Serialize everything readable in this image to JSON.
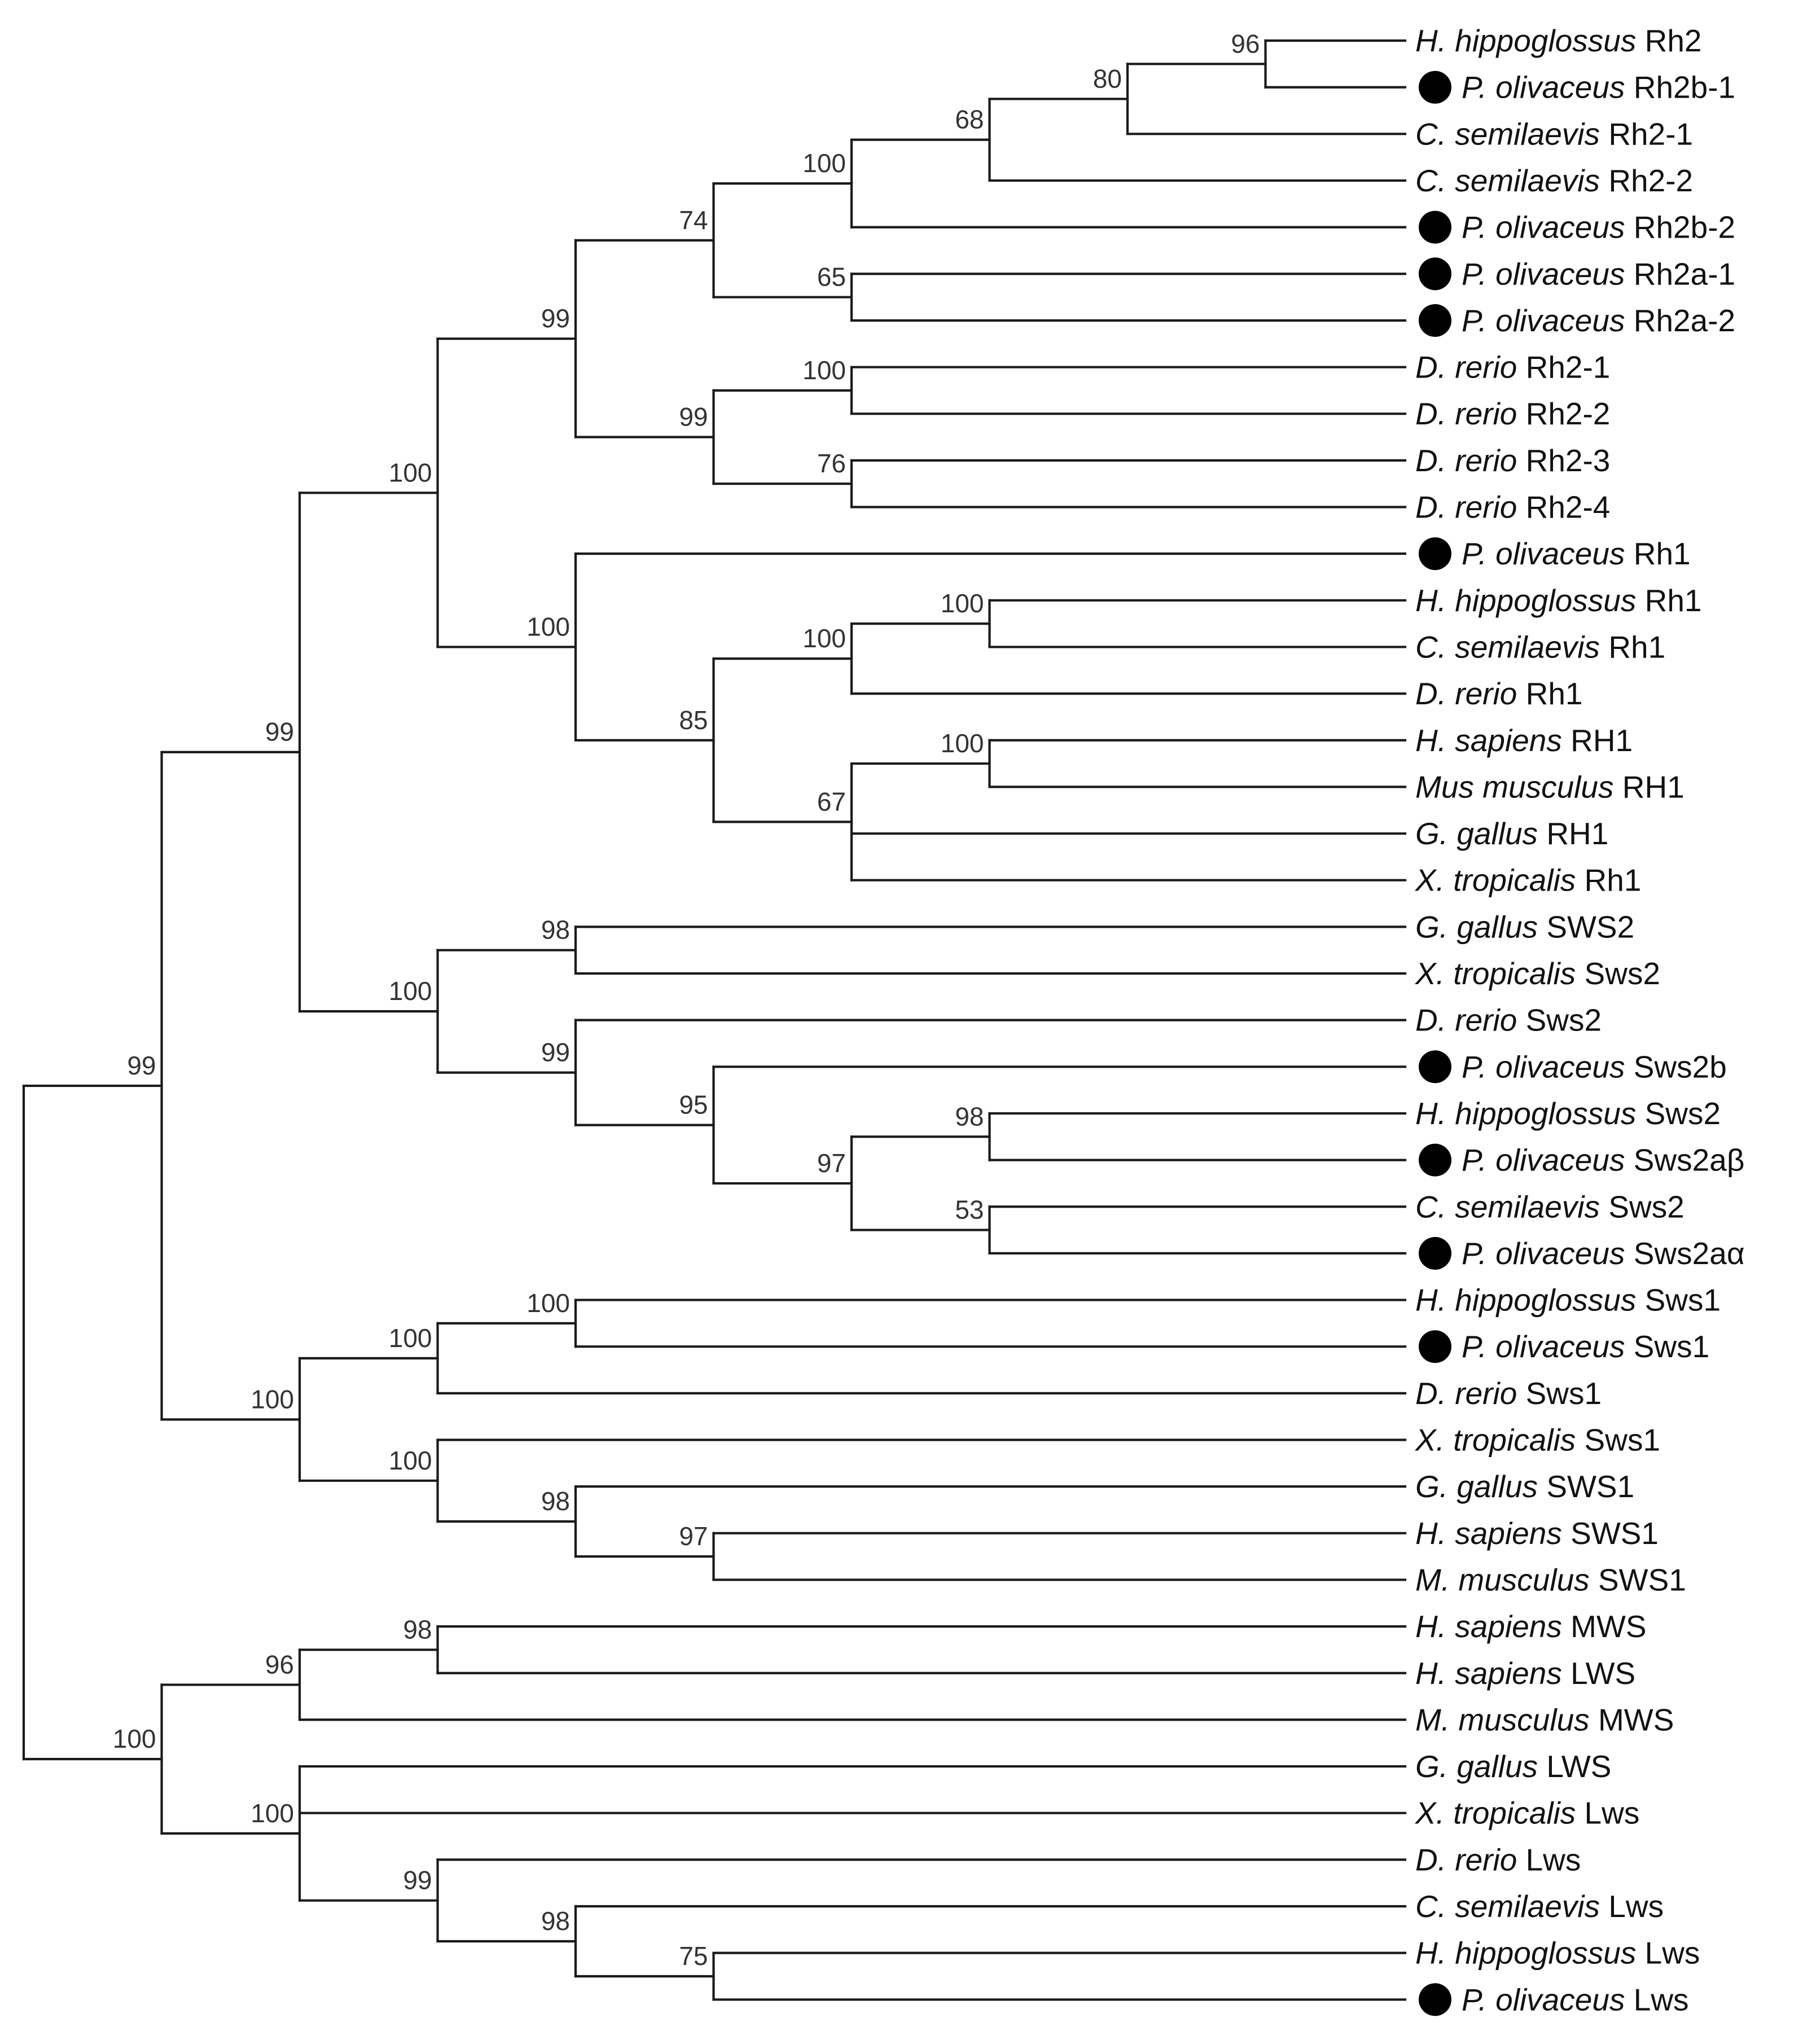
{
  "figure": {
    "type": "phylogenetic-tree",
    "marker_color": "#000000",
    "marker_meaning": "filled-circle marks P. olivaceus sequences"
  },
  "taxa": [
    {
      "species": "H. hippoglossus",
      "gene": "Rh2",
      "marker": false
    },
    {
      "species": "P. olivaceus",
      "gene": "Rh2b-1",
      "marker": true
    },
    {
      "species": "C. semilaevis",
      "gene": "Rh2-1",
      "marker": false
    },
    {
      "species": "C. semilaevis",
      "gene": "Rh2-2",
      "marker": false
    },
    {
      "species": "P. olivaceus",
      "gene": "Rh2b-2",
      "marker": true
    },
    {
      "species": "P. olivaceus",
      "gene": "Rh2a-1",
      "marker": true
    },
    {
      "species": "P. olivaceus",
      "gene": "Rh2a-2",
      "marker": true
    },
    {
      "species": "D. rerio",
      "gene": "Rh2-1",
      "marker": false
    },
    {
      "species": "D. rerio",
      "gene": "Rh2-2",
      "marker": false
    },
    {
      "species": "D. rerio",
      "gene": "Rh2-3",
      "marker": false
    },
    {
      "species": "D. rerio",
      "gene": "Rh2-4",
      "marker": false
    },
    {
      "species": "P. olivaceus",
      "gene": "Rh1",
      "marker": true
    },
    {
      "species": "H. hippoglossus",
      "gene": "Rh1",
      "marker": false
    },
    {
      "species": "C. semilaevis",
      "gene": "Rh1",
      "marker": false
    },
    {
      "species": "D. rerio",
      "gene": "Rh1",
      "marker": false
    },
    {
      "species": "H. sapiens",
      "gene": "RH1",
      "marker": false
    },
    {
      "species": "Mus musculus",
      "gene": "RH1",
      "marker": false
    },
    {
      "species": "G. gallus",
      "gene": "RH1",
      "marker": false
    },
    {
      "species": "X. tropicalis",
      "gene": "Rh1",
      "marker": false
    },
    {
      "species": "G. gallus",
      "gene": "SWS2",
      "marker": false
    },
    {
      "species": "X. tropicalis",
      "gene": "Sws2",
      "marker": false
    },
    {
      "species": "D. rerio",
      "gene": "Sws2",
      "marker": false
    },
    {
      "species": "P. olivaceus",
      "gene": "Sws2b",
      "marker": true
    },
    {
      "species": "H. hippoglossus",
      "gene": "Sws2",
      "marker": false
    },
    {
      "species": "P. olivaceus",
      "gene": "Sws2aβ",
      "marker": true
    },
    {
      "species": "C. semilaevis",
      "gene": "Sws2",
      "marker": false
    },
    {
      "species": "P. olivaceus",
      "gene": "Sws2aα",
      "marker": true
    },
    {
      "species": "H. hippoglossus",
      "gene": "Sws1",
      "marker": false
    },
    {
      "species": "P. olivaceus",
      "gene": "Sws1",
      "marker": true
    },
    {
      "species": "D. rerio",
      "gene": "Sws1",
      "marker": false
    },
    {
      "species": "X. tropicalis",
      "gene": "Sws1",
      "marker": false
    },
    {
      "species": "G. gallus",
      "gene": "SWS1",
      "marker": false
    },
    {
      "species": "H. sapiens",
      "gene": "SWS1",
      "marker": false
    },
    {
      "species": "M. musculus",
      "gene": "SWS1",
      "marker": false
    },
    {
      "species": "H. sapiens",
      "gene": "MWS",
      "marker": false
    },
    {
      "species": "H. sapiens",
      "gene": "LWS",
      "marker": false
    },
    {
      "species": "M. musculus",
      "gene": "MWS",
      "marker": false
    },
    {
      "species": "G. gallus",
      "gene": "LWS",
      "marker": false
    },
    {
      "species": "X. tropicalis",
      "gene": "Lws",
      "marker": false
    },
    {
      "species": "D. rerio",
      "gene": "Lws",
      "marker": false
    },
    {
      "species": "C. semilaevis",
      "gene": "Lws",
      "marker": false
    },
    {
      "species": "H. hippoglossus",
      "gene": "Lws",
      "marker": false
    },
    {
      "species": "P. olivaceus",
      "gene": "Lws",
      "marker": true
    }
  ],
  "tree": {
    "children": [
      {
        "support": "99",
        "children": [
          {
            "support": "99",
            "children": [
              {
                "support": "100",
                "children": [
                  {
                    "support": "99",
                    "children": [
                      {
                        "support": "74",
                        "children": [
                          {
                            "support": "100",
                            "children": [
                              {
                                "support": "68",
                                "children": [
                                  {
                                    "support": "80",
                                    "children": [
                                      {
                                        "support": "96",
                                        "children": [
                                          {
                                            "leaf": 0
                                          },
                                          {
                                            "leaf": 1
                                          }
                                        ]
                                      },
                                      {
                                        "leaf": 2
                                      }
                                    ]
                                  },
                                  {
                                    "leaf": 3
                                  }
                                ]
                              },
                              {
                                "leaf": 4
                              }
                            ]
                          },
                          {
                            "support": "65",
                            "children": [
                              {
                                "leaf": 5
                              },
                              {
                                "leaf": 6
                              }
                            ]
                          }
                        ]
                      },
                      {
                        "support": "99",
                        "children": [
                          {
                            "support": "100",
                            "children": [
                              {
                                "leaf": 7
                              },
                              {
                                "leaf": 8
                              }
                            ]
                          },
                          {
                            "support": "76",
                            "children": [
                              {
                                "leaf": 9
                              },
                              {
                                "leaf": 10
                              }
                            ]
                          }
                        ]
                      }
                    ]
                  },
                  {
                    "support": "100",
                    "children": [
                      {
                        "leaf": 11
                      },
                      {
                        "support": "85",
                        "children": [
                          {
                            "support": "100",
                            "children": [
                              {
                                "support": "100",
                                "children": [
                                  {
                                    "leaf": 12
                                  },
                                  {
                                    "leaf": 13
                                  }
                                ]
                              },
                              {
                                "leaf": 14
                              }
                            ]
                          },
                          {
                            "support": "67",
                            "children": [
                              {
                                "support": "100",
                                "children": [
                                  {
                                    "leaf": 15
                                  },
                                  {
                                    "leaf": 16
                                  }
                                ]
                              },
                              {
                                "leaf": 17
                              },
                              {
                                "leaf": 18
                              }
                            ]
                          }
                        ]
                      }
                    ]
                  }
                ]
              },
              {
                "support": "100",
                "children": [
                  {
                    "support": "98",
                    "children": [
                      {
                        "leaf": 19
                      },
                      {
                        "leaf": 20
                      }
                    ]
                  },
                  {
                    "support": "99",
                    "children": [
                      {
                        "leaf": 21
                      },
                      {
                        "support": "95",
                        "children": [
                          {
                            "leaf": 22
                          },
                          {
                            "support": "97",
                            "children": [
                              {
                                "support": "98",
                                "children": [
                                  {
                                    "leaf": 23
                                  },
                                  {
                                    "leaf": 24
                                  }
                                ]
                              },
                              {
                                "support": "53",
                                "children": [
                                  {
                                    "leaf": 25
                                  },
                                  {
                                    "leaf": 26
                                  }
                                ]
                              }
                            ]
                          }
                        ]
                      }
                    ]
                  }
                ]
              }
            ]
          },
          {
            "support": "100",
            "children": [
              {
                "support": "100",
                "children": [
                  {
                    "support": "100",
                    "children": [
                      {
                        "leaf": 27
                      },
                      {
                        "leaf": 28
                      }
                    ]
                  },
                  {
                    "leaf": 29
                  }
                ]
              },
              {
                "support": "100",
                "children": [
                  {
                    "leaf": 30
                  },
                  {
                    "support": "98",
                    "children": [
                      {
                        "leaf": 31
                      },
                      {
                        "support": "97",
                        "children": [
                          {
                            "leaf": 32
                          },
                          {
                            "leaf": 33
                          }
                        ]
                      }
                    ]
                  }
                ]
              }
            ]
          }
        ]
      },
      {
        "support": "100",
        "children": [
          {
            "support": "96",
            "children": [
              {
                "support": "98",
                "children": [
                  {
                    "leaf": 34
                  },
                  {
                    "leaf": 35
                  }
                ]
              },
              {
                "leaf": 36
              }
            ]
          },
          {
            "support": "100",
            "children": [
              {
                "leaf": 37
              },
              {
                "leaf": 38
              },
              {
                "support": "99",
                "children": [
                  {
                    "leaf": 39
                  },
                  {
                    "support": "98",
                    "children": [
                      {
                        "leaf": 40
                      },
                      {
                        "support": "75",
                        "children": [
                          {
                            "leaf": 41
                          },
                          {
                            "leaf": 42
                          }
                        ]
                      }
                    ]
                  }
                ]
              }
            ]
          }
        ]
      }
    ]
  }
}
